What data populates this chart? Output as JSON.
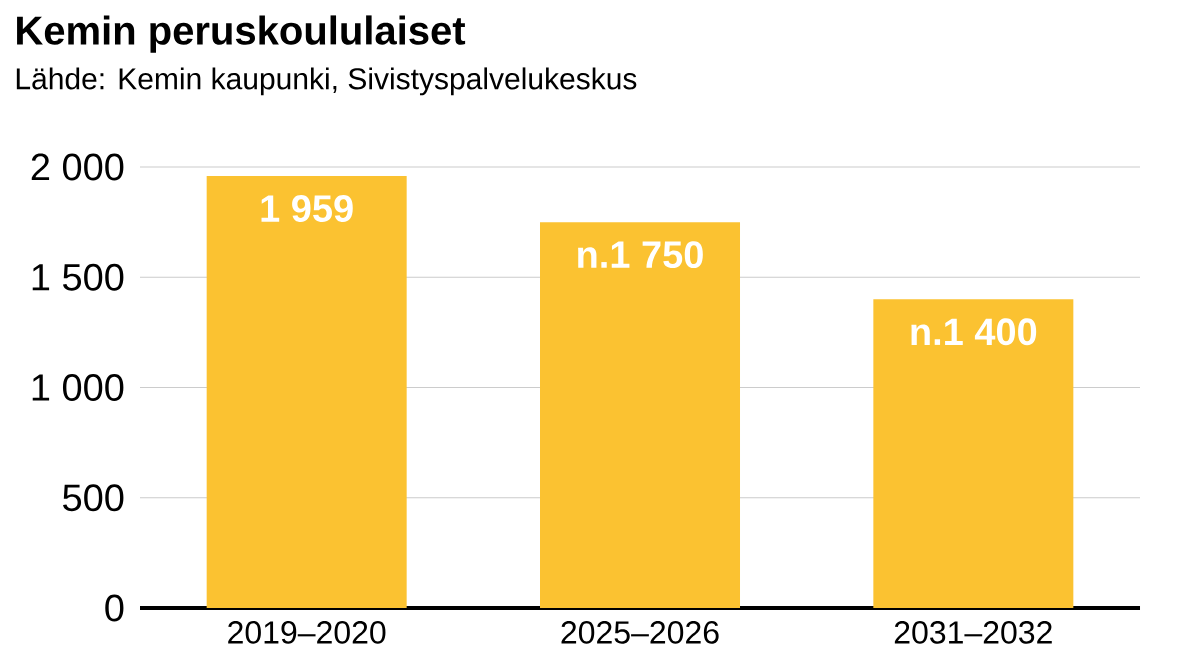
{
  "chart_data": {
    "type": "bar",
    "title": "Kemin peruskoululaiset",
    "subtitle": "Lähde: Kemin kaupunki, Sivistyspalvelukeskus",
    "categories": [
      "2019–2020",
      "2025–2026",
      "2031–2032"
    ],
    "values": [
      1959,
      1750,
      1400
    ],
    "value_labels": [
      "1 959",
      "n.1 750",
      "n.1 400"
    ],
    "color": "#fbc231",
    "ylim": [
      0,
      2000
    ],
    "yticks": [
      0,
      500,
      {
        "value": 1000,
        "label": "1 000"
      },
      {
        "value": 1500,
        "label": "1 500"
      },
      {
        "value": 2000,
        "label": "2 000"
      }
    ],
    "grid": "y"
  }
}
